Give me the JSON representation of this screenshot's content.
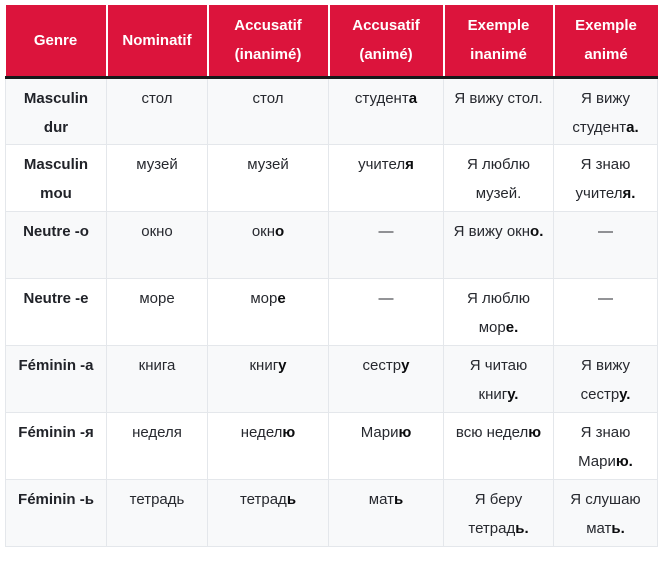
{
  "colors": {
    "header_bg": "#dc143c",
    "header_text": "#ffffff",
    "header_divider": "#17181a",
    "row_stripe_bg": "#f8f9fa",
    "row_bg": "#ffffff",
    "body_text": "#27292f",
    "genre_text": "#212329",
    "bold_text": "#0b0c0e",
    "cell_border": "#e4e7eb",
    "table_bottom_border": "#ccd1d9"
  },
  "table": {
    "columns": [
      "Genre",
      "Nominatif",
      "Accusatif (inanimé)",
      "Accusatif (animé)",
      "Exemple inanimé",
      "Exemple animé"
    ],
    "rows": [
      {
        "genre": "Masculin dur",
        "cells": [
          [
            {
              "t": "стол"
            }
          ],
          [
            {
              "t": "стол"
            }
          ],
          [
            {
              "t": "студент"
            },
            {
              "t": "а",
              "b": true
            }
          ],
          [
            {
              "t": "Я вижу стол."
            }
          ],
          [
            {
              "t": "Я вижу студент"
            },
            {
              "t": "а.",
              "b": true
            }
          ]
        ]
      },
      {
        "genre": "Masculin mou",
        "cells": [
          [
            {
              "t": "музей"
            }
          ],
          [
            {
              "t": "музей"
            }
          ],
          [
            {
              "t": "учител"
            },
            {
              "t": "я",
              "b": true
            }
          ],
          [
            {
              "t": "Я люблю музей."
            }
          ],
          [
            {
              "t": "Я знаю учител"
            },
            {
              "t": "я.",
              "b": true
            }
          ]
        ]
      },
      {
        "genre": "Neutre -o",
        "cells": [
          [
            {
              "t": "окно"
            }
          ],
          [
            {
              "t": "окн"
            },
            {
              "t": "о",
              "b": true
            }
          ],
          [
            {
              "t": "—"
            }
          ],
          [
            {
              "t": "Я вижу окн"
            },
            {
              "t": "о.",
              "b": true
            }
          ],
          [
            {
              "t": "—"
            }
          ]
        ]
      },
      {
        "genre": "Neutre -e",
        "cells": [
          [
            {
              "t": "море"
            }
          ],
          [
            {
              "t": "мор"
            },
            {
              "t": "е",
              "b": true
            }
          ],
          [
            {
              "t": "—"
            }
          ],
          [
            {
              "t": "Я люблю мор"
            },
            {
              "t": "е.",
              "b": true
            }
          ],
          [
            {
              "t": "—"
            }
          ]
        ]
      },
      {
        "genre": "Féminin -а",
        "cells": [
          [
            {
              "t": "книга"
            }
          ],
          [
            {
              "t": "книг"
            },
            {
              "t": "у",
              "b": true
            }
          ],
          [
            {
              "t": "сестр"
            },
            {
              "t": "у",
              "b": true
            }
          ],
          [
            {
              "t": "Я читаю книг"
            },
            {
              "t": "у.",
              "b": true
            }
          ],
          [
            {
              "t": "Я вижу сестр"
            },
            {
              "t": "у.",
              "b": true
            }
          ]
        ]
      },
      {
        "genre": "Féminin -я",
        "cells": [
          [
            {
              "t": "неделя"
            }
          ],
          [
            {
              "t": "недел"
            },
            {
              "t": "ю",
              "b": true
            }
          ],
          [
            {
              "t": "Мари"
            },
            {
              "t": "ю",
              "b": true
            }
          ],
          [
            {
              "t": "всю недел"
            },
            {
              "t": "ю",
              "b": true
            }
          ],
          [
            {
              "t": "Я знаю Мари"
            },
            {
              "t": "ю.",
              "b": true
            }
          ]
        ]
      },
      {
        "genre": "Féminin -ь",
        "cells": [
          [
            {
              "t": "тетрадь"
            }
          ],
          [
            {
              "t": "тетрад"
            },
            {
              "t": "ь",
              "b": true
            }
          ],
          [
            {
              "t": "мат"
            },
            {
              "t": "ь",
              "b": true
            }
          ],
          [
            {
              "t": "Я беру тетрад"
            },
            {
              "t": "ь.",
              "b": true
            }
          ],
          [
            {
              "t": "Я слушаю мат"
            },
            {
              "t": "ь.",
              "b": true
            }
          ]
        ]
      }
    ]
  }
}
